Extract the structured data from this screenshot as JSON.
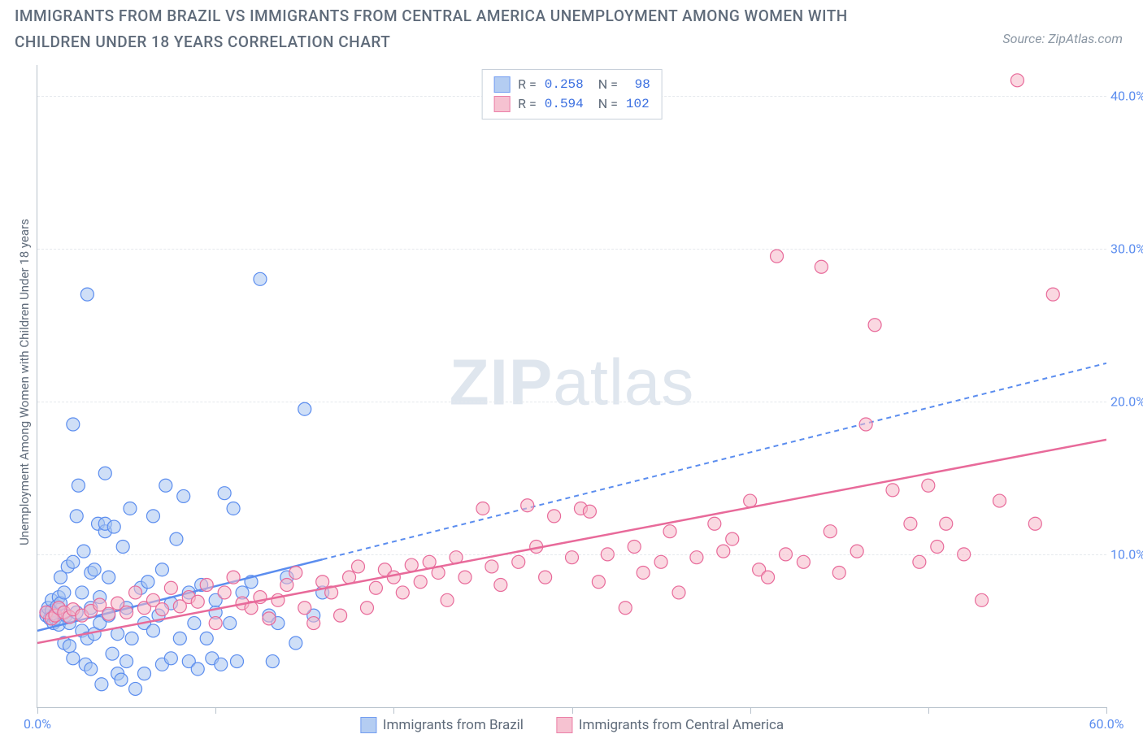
{
  "title": "IMMIGRANTS FROM BRAZIL VS IMMIGRANTS FROM CENTRAL AMERICA UNEMPLOYMENT AMONG WOMEN WITH CHILDREN UNDER 18 YEARS CORRELATION CHART",
  "source": "Source: ZipAtlas.com",
  "watermark_parts": {
    "zip": "ZIP",
    "atlas": "atlas"
  },
  "ylabel": "Unemployment Among Women with Children Under 18 years",
  "chart": {
    "type": "scatter",
    "xlim": [
      0,
      60
    ],
    "ylim": [
      0,
      42
    ],
    "background_color": "#ffffff",
    "grid_color": "#e5e9ed",
    "axis_color": "#b8c2cc",
    "xticks": [
      0,
      10,
      20,
      30,
      40,
      50,
      60
    ],
    "xtick_labels": [
      "0.0%",
      "",
      "",
      "",
      "",
      "",
      "60.0%"
    ],
    "yticks": [
      10,
      20,
      30,
      40
    ],
    "ytick_labels": [
      "10.0%",
      "20.0%",
      "30.0%",
      "40.0%"
    ],
    "marker_radius": 8,
    "marker_opacity": 0.55,
    "series": [
      {
        "name": "Immigrants from Brazil",
        "color_fill": "#a8c5f0",
        "color_stroke": "#5b8def",
        "R": "0.258",
        "N": "98",
        "trend": {
          "x1": 0,
          "y1": 5.0,
          "x2": 60,
          "y2": 22.5,
          "solid_until_x": 16
        },
        "points": [
          [
            0.5,
            6
          ],
          [
            0.5,
            6.2
          ],
          [
            0.6,
            6.5
          ],
          [
            0.7,
            5.8
          ],
          [
            0.8,
            6.3
          ],
          [
            0.8,
            7
          ],
          [
            0.9,
            5.5
          ],
          [
            1,
            5.8
          ],
          [
            1,
            6.1
          ],
          [
            1.1,
            6.6
          ],
          [
            1.2,
            7.2
          ],
          [
            1.2,
            5.4
          ],
          [
            1.3,
            6.8
          ],
          [
            1.3,
            8.5
          ],
          [
            1.5,
            7.5
          ],
          [
            1.5,
            4.2
          ],
          [
            1.6,
            6.0
          ],
          [
            1.7,
            9.2
          ],
          [
            1.8,
            5.5
          ],
          [
            1.8,
            4.0
          ],
          [
            2,
            9.5
          ],
          [
            2,
            3.2
          ],
          [
            2,
            18.5
          ],
          [
            2.2,
            12.5
          ],
          [
            2.2,
            6.2
          ],
          [
            2.3,
            14.5
          ],
          [
            2.5,
            7.5
          ],
          [
            2.5,
            5.0
          ],
          [
            2.6,
            10.2
          ],
          [
            2.7,
            2.8
          ],
          [
            2.8,
            4.5
          ],
          [
            2.8,
            27
          ],
          [
            3,
            6.5
          ],
          [
            3,
            8.8
          ],
          [
            3,
            2.5
          ],
          [
            3.2,
            9.0
          ],
          [
            3.2,
            4.8
          ],
          [
            3.4,
            12.0
          ],
          [
            3.5,
            5.5
          ],
          [
            3.5,
            7.2
          ],
          [
            3.6,
            1.5
          ],
          [
            3.8,
            11.5
          ],
          [
            3.8,
            15.3
          ],
          [
            3.8,
            12.0
          ],
          [
            4,
            6.0
          ],
          [
            4,
            8.5
          ],
          [
            4.2,
            3.5
          ],
          [
            4.3,
            11.8
          ],
          [
            4.5,
            4.8
          ],
          [
            4.5,
            2.2
          ],
          [
            4.7,
            1.8
          ],
          [
            4.8,
            10.5
          ],
          [
            5,
            6.5
          ],
          [
            5,
            3.0
          ],
          [
            5.2,
            13.0
          ],
          [
            5.3,
            4.5
          ],
          [
            5.5,
            1.2
          ],
          [
            5.8,
            7.8
          ],
          [
            6,
            2.2
          ],
          [
            6,
            5.5
          ],
          [
            6.2,
            8.2
          ],
          [
            6.5,
            12.5
          ],
          [
            6.5,
            5.0
          ],
          [
            6.8,
            6.0
          ],
          [
            7,
            2.8
          ],
          [
            7,
            9.0
          ],
          [
            7.2,
            14.5
          ],
          [
            7.5,
            3.2
          ],
          [
            7.5,
            6.8
          ],
          [
            7.8,
            11.0
          ],
          [
            8,
            4.5
          ],
          [
            8.2,
            13.8
          ],
          [
            8.5,
            7.5
          ],
          [
            8.5,
            3.0
          ],
          [
            8.8,
            5.5
          ],
          [
            9,
            2.5
          ],
          [
            9.2,
            8.0
          ],
          [
            9.5,
            4.5
          ],
          [
            9.8,
            3.2
          ],
          [
            10,
            6.2
          ],
          [
            10,
            7.0
          ],
          [
            10.3,
            2.8
          ],
          [
            10.5,
            14.0
          ],
          [
            10.8,
            5.5
          ],
          [
            11,
            13.0
          ],
          [
            11.2,
            3.0
          ],
          [
            11.5,
            7.5
          ],
          [
            12,
            8.2
          ],
          [
            12.5,
            28
          ],
          [
            13,
            6.0
          ],
          [
            13.2,
            3.0
          ],
          [
            13.5,
            5.5
          ],
          [
            14,
            8.5
          ],
          [
            14.5,
            4.2
          ],
          [
            15,
            19.5
          ],
          [
            15.5,
            6.0
          ],
          [
            16,
            7.5
          ]
        ]
      },
      {
        "name": "Immigrants from Central America",
        "color_fill": "#f5b8c9",
        "color_stroke": "#e86a9a",
        "R": "0.594",
        "N": "102",
        "trend": {
          "x1": 0,
          "y1": 4.2,
          "x2": 60,
          "y2": 17.5,
          "solid_until_x": 60
        },
        "points": [
          [
            0.5,
            6.2
          ],
          [
            0.8,
            5.8
          ],
          [
            1,
            6.0
          ],
          [
            1.2,
            6.5
          ],
          [
            1.5,
            6.2
          ],
          [
            1.8,
            5.9
          ],
          [
            2,
            6.4
          ],
          [
            2.5,
            6.0
          ],
          [
            3,
            6.3
          ],
          [
            3.5,
            6.7
          ],
          [
            4,
            6.1
          ],
          [
            4.5,
            6.8
          ],
          [
            5,
            6.2
          ],
          [
            5.5,
            7.5
          ],
          [
            6,
            6.5
          ],
          [
            6.5,
            7.0
          ],
          [
            7,
            6.4
          ],
          [
            7.5,
            7.8
          ],
          [
            8,
            6.6
          ],
          [
            8.5,
            7.2
          ],
          [
            9,
            6.9
          ],
          [
            9.5,
            8.0
          ],
          [
            10,
            5.5
          ],
          [
            10.5,
            7.5
          ],
          [
            11,
            8.5
          ],
          [
            11.5,
            6.8
          ],
          [
            12,
            6.5
          ],
          [
            12.5,
            7.2
          ],
          [
            13,
            5.8
          ],
          [
            13.5,
            7.0
          ],
          [
            14,
            8.0
          ],
          [
            14.5,
            8.8
          ],
          [
            15,
            6.5
          ],
          [
            15.5,
            5.5
          ],
          [
            16,
            8.2
          ],
          [
            16.5,
            7.5
          ],
          [
            17,
            6.0
          ],
          [
            17.5,
            8.5
          ],
          [
            18,
            9.2
          ],
          [
            18.5,
            6.5
          ],
          [
            19,
            7.8
          ],
          [
            19.5,
            9.0
          ],
          [
            20,
            8.5
          ],
          [
            20.5,
            7.5
          ],
          [
            21,
            9.3
          ],
          [
            21.5,
            8.2
          ],
          [
            22,
            9.5
          ],
          [
            22.5,
            8.8
          ],
          [
            23,
            7.0
          ],
          [
            23.5,
            9.8
          ],
          [
            24,
            8.5
          ],
          [
            25,
            13.0
          ],
          [
            25.5,
            9.2
          ],
          [
            26,
            8.0
          ],
          [
            27,
            9.5
          ],
          [
            27.5,
            13.2
          ],
          [
            28,
            10.5
          ],
          [
            28.5,
            8.5
          ],
          [
            29,
            12.5
          ],
          [
            30,
            9.8
          ],
          [
            30.5,
            13.0
          ],
          [
            31,
            12.8
          ],
          [
            31.5,
            8.2
          ],
          [
            32,
            10.0
          ],
          [
            33,
            6.5
          ],
          [
            33.5,
            10.5
          ],
          [
            34,
            8.8
          ],
          [
            35,
            9.5
          ],
          [
            35.5,
            11.5
          ],
          [
            36,
            7.5
          ],
          [
            37,
            9.8
          ],
          [
            38,
            12.0
          ],
          [
            38.5,
            10.2
          ],
          [
            39,
            11.0
          ],
          [
            40,
            13.5
          ],
          [
            40.5,
            9.0
          ],
          [
            41,
            8.5
          ],
          [
            41.5,
            29.5
          ],
          [
            42,
            10.0
          ],
          [
            43,
            9.5
          ],
          [
            44,
            28.8
          ],
          [
            44.5,
            11.5
          ],
          [
            45,
            8.8
          ],
          [
            46,
            10.2
          ],
          [
            46.5,
            18.5
          ],
          [
            47,
            25.0
          ],
          [
            48,
            14.2
          ],
          [
            49,
            12.0
          ],
          [
            49.5,
            9.5
          ],
          [
            50,
            14.5
          ],
          [
            50.5,
            10.5
          ],
          [
            51,
            12.0
          ],
          [
            52,
            10.0
          ],
          [
            53,
            7.0
          ],
          [
            54,
            13.5
          ],
          [
            55,
            41.0
          ],
          [
            56,
            12.0
          ],
          [
            57,
            27.0
          ]
        ]
      }
    ]
  },
  "colors": {
    "tick_text": "#5b8def",
    "title_text": "#5f6b7a",
    "link_text": "#3b6fe0"
  }
}
